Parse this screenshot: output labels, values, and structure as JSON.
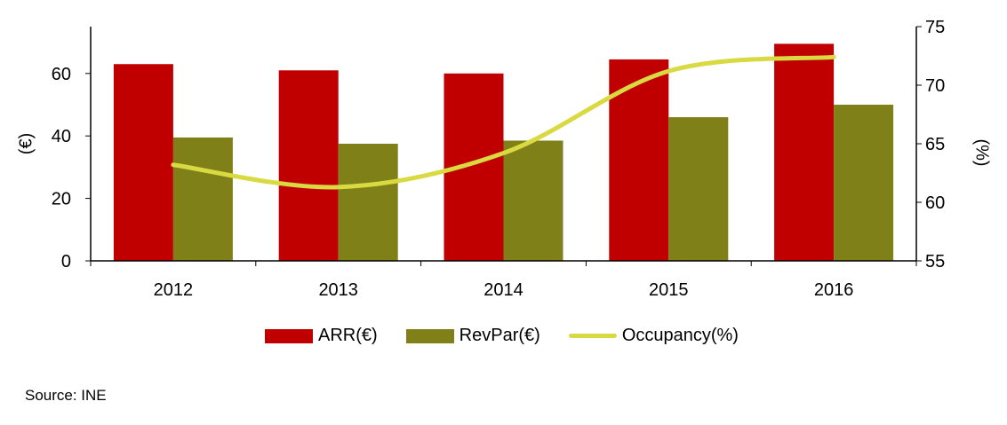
{
  "colors": {
    "arr": "#c00000",
    "revpar": "#808018",
    "occupancy": "#d9d941",
    "axis": "#000000"
  },
  "source": "Source: INE",
  "chart_data": {
    "type": "bar",
    "categories": [
      "2012",
      "2013",
      "2014",
      "2015",
      "2016"
    ],
    "series": [
      {
        "name": "ARR(€)",
        "kind": "bar",
        "axis": "left",
        "values": [
          63,
          61,
          60,
          64.5,
          69.5
        ]
      },
      {
        "name": "RevPar(€)",
        "kind": "bar",
        "axis": "left",
        "values": [
          39.5,
          37.5,
          38.5,
          46,
          50
        ]
      },
      {
        "name": "Occupancy(%)",
        "kind": "line",
        "smooth": true,
        "axis": "right",
        "values": [
          63.2,
          61.3,
          64.2,
          71.2,
          72.4
        ]
      }
    ],
    "ylabel_left": "(€)",
    "ylabel_right": "(%)",
    "ylim_left": [
      0,
      75
    ],
    "yticks_left": [
      "0",
      "20",
      "40",
      "60"
    ],
    "yticks_left_values": [
      0,
      20,
      40,
      60
    ],
    "ylim_right": [
      55,
      75
    ],
    "yticks_right": [
      "55",
      "60",
      "65",
      "70",
      "75"
    ],
    "yticks_right_values": [
      55,
      60,
      65,
      70,
      75
    ],
    "grid": false,
    "legend_position": "bottom"
  }
}
